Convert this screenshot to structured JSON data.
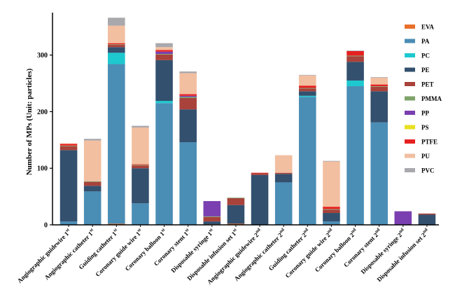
{
  "chart_data": {
    "type": "stacked-bar",
    "title": "",
    "xlabel": "",
    "ylabel": "Number of MPs (Unit: particles)",
    "ylim": [
      0,
      375
    ],
    "yticks": [
      0,
      100,
      200,
      300
    ],
    "categories": [
      "Angiographic guidewire 1st",
      "Angiographic catheter 1st",
      "Guiding catheter 1st",
      "Coronary guide wire 1st",
      "Coronary balloon 1st",
      "Coronary stent 1st",
      "Disposable syringe 1st",
      "Disposable infusion set 1st",
      "Angiographic guidewire 2nd",
      "Angiographic catheter 2nd",
      "Guiding catheter 2nd",
      "Coronary guide wire 2nd",
      "Coronary balloon 2nd",
      "Coronary stent 2nd",
      "Disposable syringe 2nd",
      "Disposable infusion set 2nd"
    ],
    "series": [
      {
        "name": "EVA",
        "color": "#e8702a",
        "values": [
          0,
          0,
          2,
          0,
          0,
          0,
          1,
          2,
          0,
          0,
          0,
          1,
          0,
          0,
          0,
          0
        ]
      },
      {
        "name": "PA",
        "color": "#4a8db5",
        "values": [
          6,
          59,
          282,
          38,
          215,
          146,
          0,
          0,
          0,
          75,
          226,
          5,
          245,
          181,
          0,
          0
        ]
      },
      {
        "name": "PC",
        "color": "#1ec8cf",
        "values": [
          0,
          0,
          20,
          0,
          4,
          0,
          0,
          0,
          0,
          0,
          2,
          0,
          10,
          0,
          0,
          0
        ]
      },
      {
        "name": "PE",
        "color": "#33506e",
        "values": [
          126,
          10,
          10,
          62,
          72,
          58,
          5,
          33,
          88,
          15,
          8,
          15,
          33,
          55,
          0,
          18
        ]
      },
      {
        "name": "PET",
        "color": "#a8423b",
        "values": [
          7,
          7,
          4,
          5,
          10,
          20,
          8,
          12,
          3,
          2,
          5,
          6,
          10,
          8,
          0,
          2
        ]
      },
      {
        "name": "PMMA",
        "color": "#7fa36a",
        "values": [
          1,
          1,
          1,
          1,
          1,
          2,
          1,
          1,
          0,
          0,
          1,
          1,
          1,
          1,
          0,
          0
        ]
      },
      {
        "name": "PP",
        "color": "#7a3fb0",
        "values": [
          0,
          0,
          0,
          0,
          4,
          2,
          27,
          0,
          0,
          0,
          0,
          0,
          0,
          0,
          24,
          0
        ]
      },
      {
        "name": "PS",
        "color": "#e8e020",
        "values": [
          0,
          0,
          0,
          0,
          0,
          0,
          0,
          0,
          0,
          0,
          0,
          0,
          0,
          0,
          0,
          0
        ]
      },
      {
        "name": "PTFE",
        "color": "#e62020",
        "values": [
          3,
          0,
          2,
          1,
          3,
          3,
          0,
          0,
          1,
          0,
          4,
          4,
          8,
          3,
          0,
          0
        ]
      },
      {
        "name": "PU",
        "color": "#f2bfa0",
        "values": [
          1,
          72,
          31,
          65,
          5,
          37,
          0,
          0,
          0,
          31,
          18,
          80,
          0,
          12,
          0,
          0
        ]
      },
      {
        "name": "PVC",
        "color": "#a9a9ad",
        "values": [
          0,
          3,
          14,
          3,
          7,
          3,
          0,
          0,
          0,
          0,
          1,
          1,
          1,
          1,
          0,
          0
        ]
      }
    ],
    "legend_position": "right"
  }
}
